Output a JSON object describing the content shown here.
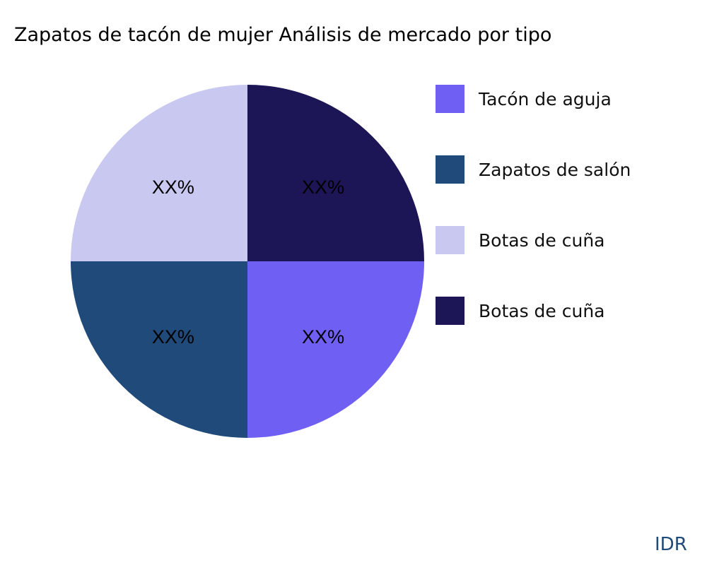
{
  "chart_data": {
    "type": "pie",
    "title": "Zapatos de tacón de mujer Análisis de mercado por tipo",
    "categories": [
      "Tacón de aguja",
      "Zapatos de salón",
      "Botas de cuña",
      "Botas de cuña"
    ],
    "values": [
      25,
      25,
      25,
      25
    ],
    "data_labels": [
      "XX%",
      "XX%",
      "XX%",
      "XX%"
    ],
    "colors": [
      "#6f5ff2",
      "#1f4a7a",
      "#c8c8f0",
      "#1c1657"
    ],
    "legend_placement": "right"
  },
  "watermark": "IDR"
}
